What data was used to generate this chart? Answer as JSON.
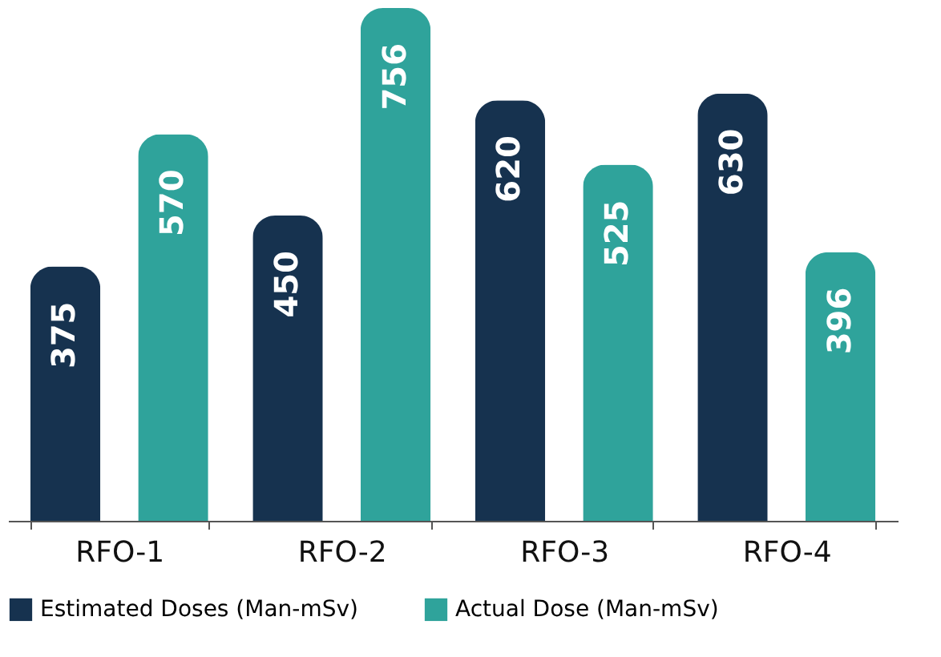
{
  "chart_data": {
    "type": "bar",
    "categories": [
      "RFO-1",
      "RFO-2",
      "RFO-3",
      "RFO-4"
    ],
    "series": [
      {
        "name": "Estimated Doses (Man-mSv)",
        "color": "#16324f",
        "values": [
          375,
          450,
          620,
          630
        ]
      },
      {
        "name": "Actual Dose (Man-mSv)",
        "color": "#2fa39b",
        "values": [
          570,
          756,
          525,
          396
        ]
      }
    ],
    "data_labels": true,
    "legend": "bottom",
    "grid": false
  }
}
